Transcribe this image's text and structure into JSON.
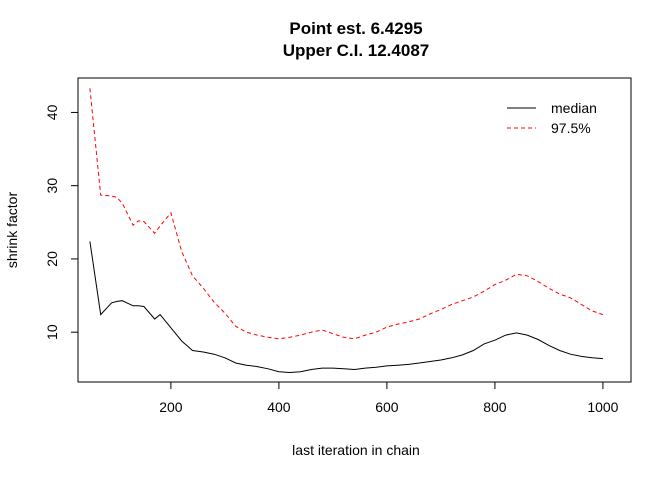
{
  "chart_data": {
    "type": "line",
    "title_line1": "Point est. 6.4295",
    "title_line2": "Upper C.I. 12.4087",
    "xlabel": "last iteration in chain",
    "ylabel": "shrink factor",
    "xlim": [
      28,
      1052
    ],
    "ylim": [
      3.2,
      44.7
    ],
    "xticks": [
      200,
      400,
      600,
      800,
      1000
    ],
    "yticks": [
      10,
      20,
      30,
      40
    ],
    "legend_position": "top-right",
    "x": [
      50,
      70,
      90,
      100,
      110,
      130,
      140,
      150,
      170,
      180,
      200,
      220,
      240,
      260,
      280,
      300,
      320,
      340,
      360,
      380,
      400,
      420,
      440,
      460,
      480,
      500,
      520,
      540,
      560,
      580,
      600,
      620,
      640,
      660,
      680,
      700,
      720,
      740,
      760,
      780,
      800,
      820,
      840,
      860,
      880,
      900,
      920,
      940,
      960,
      980,
      1000
    ],
    "series": [
      {
        "name": "median",
        "color": "#000000",
        "dash": "solid",
        "values": [
          22.4,
          12.4,
          14.0,
          14.2,
          14.3,
          13.6,
          13.6,
          13.5,
          11.8,
          12.4,
          10.6,
          8.8,
          7.5,
          7.3,
          7.0,
          6.5,
          5.8,
          5.5,
          5.3,
          5.0,
          4.6,
          4.5,
          4.6,
          4.9,
          5.1,
          5.1,
          5.0,
          4.9,
          5.1,
          5.2,
          5.4,
          5.5,
          5.6,
          5.8,
          6.0,
          6.2,
          6.5,
          6.9,
          7.5,
          8.4,
          8.9,
          9.6,
          9.9,
          9.6,
          9.0,
          8.2,
          7.5,
          7.0,
          6.7,
          6.5,
          6.4
        ]
      },
      {
        "name": "97.5%",
        "color": "#ff0000",
        "dash": "dashed",
        "values": [
          43.3,
          28.7,
          28.6,
          28.4,
          27.6,
          24.6,
          25.2,
          25.1,
          23.5,
          24.5,
          26.3,
          21.0,
          17.7,
          16.0,
          14.1,
          12.6,
          10.8,
          10.0,
          9.6,
          9.3,
          9.1,
          9.3,
          9.6,
          10.0,
          10.3,
          9.8,
          9.3,
          9.1,
          9.6,
          10.0,
          10.7,
          11.1,
          11.4,
          11.8,
          12.5,
          13.1,
          13.8,
          14.3,
          14.8,
          15.6,
          16.5,
          17.1,
          17.9,
          17.7,
          16.9,
          16.0,
          15.2,
          14.7,
          13.8,
          12.9,
          12.4
        ]
      }
    ]
  }
}
